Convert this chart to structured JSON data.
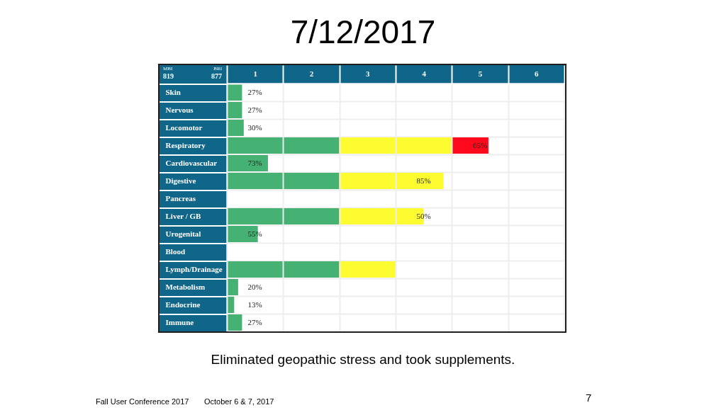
{
  "chart_data": {
    "type": "bar",
    "title": "7/12/2017",
    "orientation": "horizontal",
    "stacked": true,
    "categories": [
      "Skin",
      "Nervous",
      "Locomotor",
      "Respiratory",
      "Cardiovascular",
      "Digestive",
      "Pancreas",
      "Liver / GB",
      "Urogenital",
      "Blood",
      "Lymph/Drainage",
      "Metabolism",
      "Endocrine",
      "Immune"
    ],
    "series": [
      {
        "color": "#45b273",
        "values": [
          0.27,
          0.27,
          0.3,
          1,
          0.73,
          1,
          null,
          1,
          0.55,
          null,
          1,
          0.2,
          0.13,
          0.27
        ],
        "value_labels": [
          "27%",
          "27%",
          "30%",
          null,
          "73%",
          null,
          null,
          null,
          "55%",
          null,
          null,
          "20%",
          "13%",
          "27%"
        ]
      },
      {
        "color": "#45b273",
        "values": [
          null,
          null,
          null,
          1,
          null,
          1,
          null,
          1,
          null,
          null,
          1,
          null,
          null,
          null
        ]
      },
      {
        "color": "#fdfc30",
        "values": [
          null,
          null,
          null,
          1,
          null,
          1,
          null,
          1,
          null,
          null,
          1,
          null,
          null,
          null
        ]
      },
      {
        "color": "#fdfc30",
        "values": [
          null,
          null,
          null,
          1,
          null,
          0.85,
          null,
          0.5,
          null,
          null,
          null,
          null,
          null,
          null
        ],
        "value_labels": [
          null,
          null,
          null,
          null,
          null,
          "85%",
          null,
          "50%",
          null,
          null,
          null,
          null,
          null,
          null
        ]
      },
      {
        "color": "#fe0a1c",
        "values": [
          null,
          null,
          null,
          0.65,
          null,
          null,
          null,
          null,
          null,
          null,
          null,
          null,
          null,
          null
        ],
        "value_labels": [
          null,
          null,
          null,
          "65%",
          null,
          null,
          null,
          null,
          null,
          null,
          null,
          null,
          null,
          null
        ]
      }
    ],
    "xlim": [
      0,
      6
    ],
    "xticks": [
      {
        "value": 0,
        "label": null
      },
      {
        "value": 0.5,
        "label": "1"
      },
      {
        "value": 1,
        "label": null
      },
      {
        "value": 1.5,
        "label": "2"
      },
      {
        "value": 2,
        "label": null
      },
      {
        "value": 2.5,
        "label": "3"
      },
      {
        "value": 3,
        "label": null
      },
      {
        "value": 3.5,
        "label": "4"
      },
      {
        "value": 4,
        "label": null
      },
      {
        "value": 4.5,
        "label": "5"
      },
      {
        "value": 5,
        "label": null
      },
      {
        "value": 5.5,
        "label": "6"
      },
      {
        "value": 6,
        "label": null
      }
    ],
    "grid": true,
    "annotations": [
      "MBI",
      "819",
      "BRI",
      "877",
      "Eliminated geopathic stress and took supplements.",
      "Fall User Conference 2017",
      "October 6 & 7, 2017",
      "7"
    ]
  }
}
